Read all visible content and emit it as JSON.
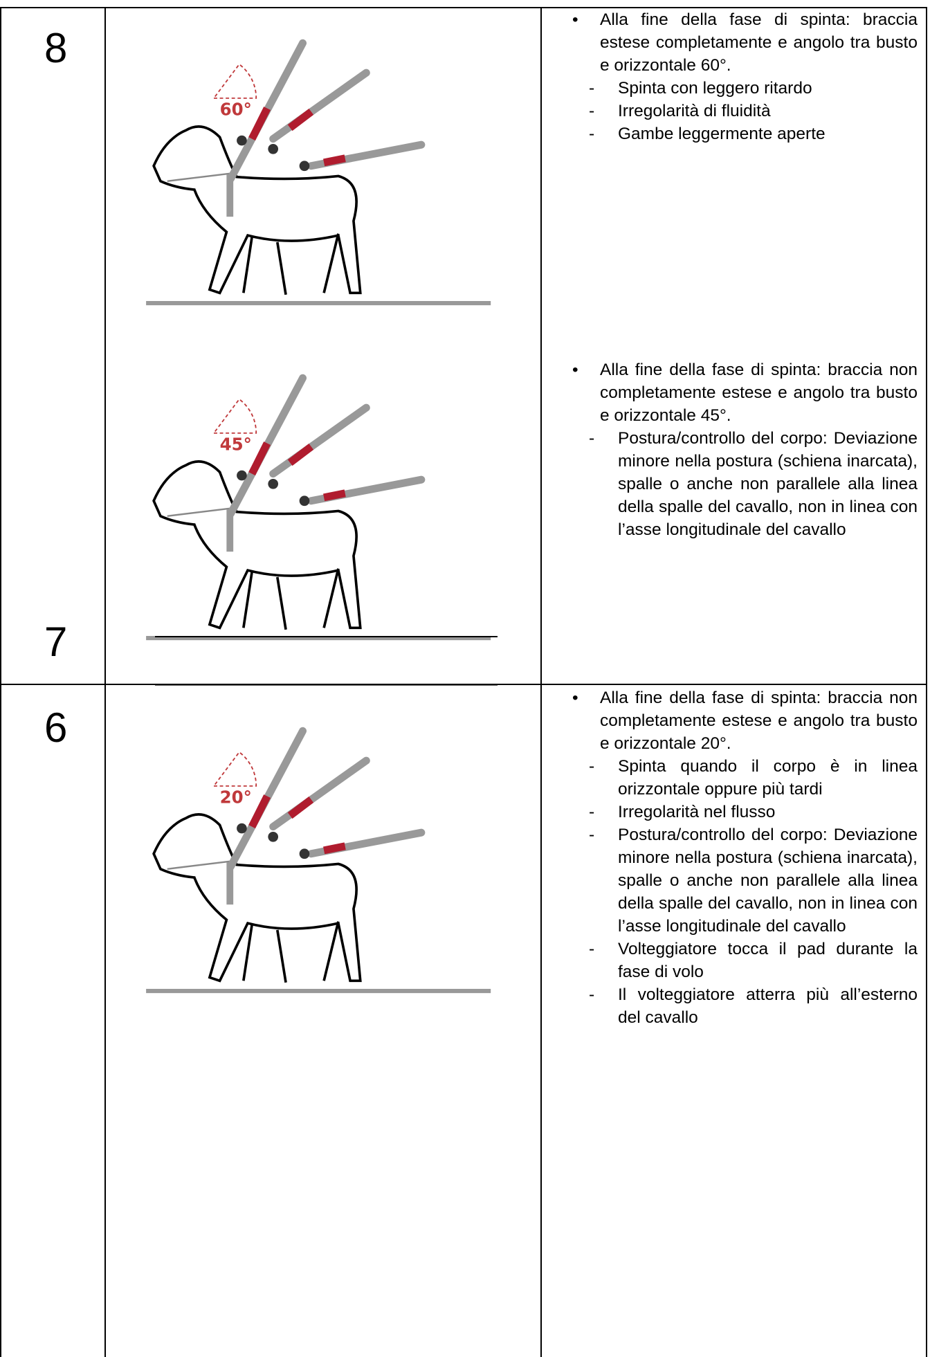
{
  "table": {
    "rows": [
      {
        "scores": [
          "8",
          "7"
        ],
        "figures": [
          {
            "angle": "60°"
          },
          {
            "angle": "45°"
          }
        ],
        "blocks": [
          {
            "bullet": "Alla fine della fase di spinta: braccia estese completamente e angolo tra busto e orizzontale 60°.",
            "dashes": [
              "Spinta con leggero ritardo",
              "Irregolarità di fluidità",
              "Gambe leggermente aperte"
            ]
          },
          {
            "bullet": "Alla fine della fase di spinta: braccia non completamente estese e angolo tra busto e orizzontale 45°.",
            "dashes": [
              "Postura/controllo del corpo: Deviazione minore nella postura (schiena inarcata), spalle o anche non parallele alla linea della spalle del cavallo, non in linea con l’asse longitudinale del cavallo"
            ]
          }
        ]
      },
      {
        "scores": [
          "6"
        ],
        "figures": [
          {
            "angle": "20°"
          }
        ],
        "blocks": [
          {
            "bullet": "Alla fine della fase di spinta: braccia non completamente estese e angolo tra busto e orizzontale 20°.",
            "dashes": [
              "Spinta quando il corpo è in linea orizzontale oppure più tardi",
              "Irregolarità nel flusso",
              "Postura/controllo del corpo: Deviazione minore nella postura (schiena inarcata), spalle o anche non parallele alla linea della spalle del cavallo, non in linea con l’asse longitudinale del cavallo",
              "Volteggiatore tocca il pad durante la fase di volo",
              "Il volteggiatore atterra più all’esterno del cavallo"
            ]
          }
        ]
      }
    ]
  }
}
